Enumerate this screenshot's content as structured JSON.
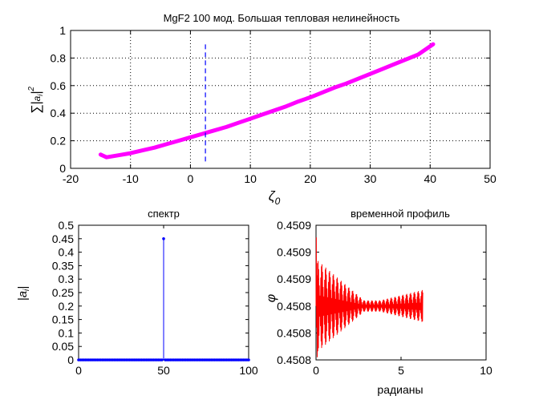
{
  "colors": {
    "magenta": "#ff00ff",
    "blue": "#0000ff",
    "red": "#ff0000",
    "dark_red": "#b00000"
  },
  "chart_data": [
    {
      "type": "line",
      "title": "MgF2 100 мод. Большая тепловая нелинейность",
      "xlabel": "ζ0",
      "ylabel": "∑|a_i|^2",
      "xlim": [
        -20,
        50
      ],
      "ylim": [
        0,
        1
      ],
      "xticks": [
        "-20",
        "-10",
        "0",
        "10",
        "20",
        "30",
        "40",
        "50"
      ],
      "yticks": [
        "0",
        "0.2",
        "0.4",
        "0.6",
        "0.8",
        "1"
      ],
      "grid": true,
      "series": [
        {
          "color": "#ff00ff",
          "x": [
            -15,
            -14.5,
            -14,
            -12,
            -10,
            -8,
            -6,
            -4,
            -2,
            0,
            2,
            4,
            6,
            8,
            10,
            12,
            14,
            16,
            18,
            20,
            22,
            24,
            26,
            28,
            30,
            32,
            34,
            36,
            38,
            40.5
          ],
          "y": [
            0.1,
            0.09,
            0.08,
            0.095,
            0.11,
            0.13,
            0.15,
            0.175,
            0.2,
            0.225,
            0.25,
            0.275,
            0.3,
            0.33,
            0.36,
            0.39,
            0.42,
            0.45,
            0.485,
            0.515,
            0.55,
            0.585,
            0.615,
            0.65,
            0.685,
            0.72,
            0.755,
            0.79,
            0.825,
            0.9
          ]
        }
      ],
      "marker_line": {
        "x": 2.5,
        "y": [
          0.05,
          0.9
        ],
        "color": "#0000ff",
        "style": "dashed"
      }
    },
    {
      "type": "stem",
      "title": "спектр",
      "xlabel": "",
      "ylabel": "|a_i|",
      "xlim": [
        0,
        100
      ],
      "ylim": [
        0,
        0.5
      ],
      "xticks": [
        "0",
        "50",
        "100"
      ],
      "yticks": [
        "0",
        "0.05",
        "0.1",
        "0.15",
        "0.2",
        "0.25",
        "0.3",
        "0.35",
        "0.4",
        "0.45",
        "0.5"
      ],
      "series": [
        {
          "color": "#0000ff",
          "baseline_value": 0.0,
          "peak_index": 50,
          "peak_value": 0.45,
          "count": 101
        }
      ]
    },
    {
      "type": "line",
      "title": "временной профиль",
      "xlabel": "радианы",
      "ylabel": "φ",
      "xlim": [
        0,
        10
      ],
      "ylim": [
        0.4508,
        0.4509
      ],
      "xticks": [
        "0",
        "5",
        "10"
      ],
      "yticks": [
        "0.4508",
        "0.4508",
        "0.4508",
        "0.4509",
        "0.4509",
        "0.4509"
      ],
      "series": [
        {
          "color": "#ff0000",
          "x_range": [
            0,
            6.28
          ],
          "mean": 0.45084,
          "start_amp": 3.5e-05,
          "end_amp": 1.2e-05
        }
      ]
    }
  ]
}
